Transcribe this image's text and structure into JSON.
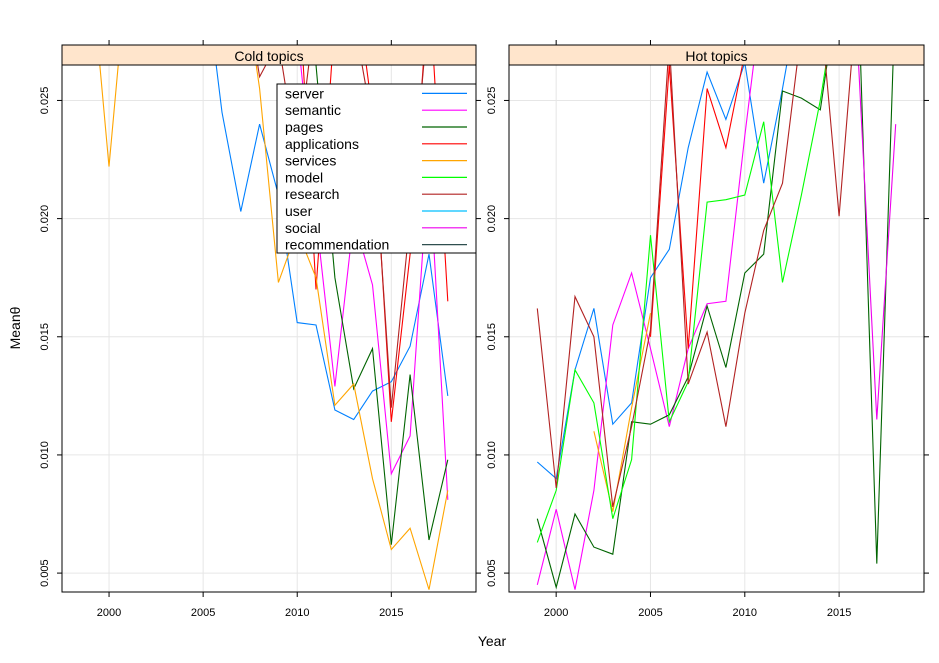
{
  "chart_data": {
    "type": "line",
    "xlabel": "Year",
    "ylabel": "Meanθ",
    "xlim": [
      1997.5,
      2019.5
    ],
    "ylim": [
      0.0042,
      0.0265
    ],
    "x_ticks": [
      2000,
      2005,
      2010,
      2015
    ],
    "y_ticks": [
      0.005,
      0.01,
      0.015,
      0.02,
      0.025
    ],
    "y_tick_labels": [
      "0.005",
      "0.010",
      "0.015",
      "0.020",
      "0.025"
    ],
    "grid": true,
    "legend_position": "top-right of first panel",
    "panels": [
      {
        "title": "Cold topics",
        "legend": true,
        "series": [
          {
            "name": "server",
            "color": "#0080ff",
            "x": [
              2005,
              2006,
              2007,
              2008,
              2009,
              2010,
              2011,
              2012,
              2013,
              2014,
              2015,
              2016,
              2017,
              2018
            ],
            "y": [
              0.031,
              0.0245,
              0.0203,
              0.024,
              0.021,
              0.0156,
              0.0155,
              0.0119,
              0.0115,
              0.0127,
              0.0131,
              0.0146,
              0.0185,
              0.0125
            ]
          },
          {
            "name": "semantic",
            "color": "#ff00ff",
            "x": [
              2009,
              2010,
              2011,
              2012,
              2013,
              2014,
              2015,
              2016,
              2017,
              2018
            ],
            "y": [
              0.031,
              0.028,
              0.0201,
              0.0129,
              0.02,
              0.0172,
              0.0092,
              0.0108,
              0.0225,
              0.0081
            ]
          },
          {
            "name": "pages",
            "color": "#006400",
            "x": [
              2010,
              2011,
              2012,
              2013,
              2014,
              2015,
              2016,
              2017,
              2018
            ],
            "y": [
              0.031,
              0.0265,
              0.0175,
              0.0128,
              0.0145,
              0.0062,
              0.0134,
              0.0064,
              0.0098
            ]
          },
          {
            "name": "applications",
            "color": "#ff0000",
            "x": [
              2010,
              2011,
              2012,
              2013,
              2014,
              2015,
              2016,
              2017,
              2018
            ],
            "y": [
              0.031,
              0.017,
              0.0285,
              0.0305,
              0.0245,
              0.0114,
              0.0185,
              0.03,
              0.0165
            ]
          },
          {
            "name": "services",
            "color": "#ffa500",
            "x": [
              1999,
              2000,
              2001,
              2007,
              2008,
              2009,
              2010,
              2011,
              2012,
              2013,
              2014,
              2015,
              2016,
              2017,
              2018
            ],
            "y": [
              0.031,
              0.0222,
              0.031,
              0.031,
              0.0255,
              0.0173,
              0.0195,
              0.0175,
              0.0121,
              0.013,
              0.009,
              0.006,
              0.0069,
              0.0043,
              0.0085
            ]
          },
          {
            "name": "model",
            "color": "#00ff00",
            "x": [],
            "y": []
          },
          {
            "name": "research",
            "color": "#b22222",
            "x": [
              2007,
              2008,
              2009,
              2010,
              2011,
              2012,
              2013,
              2014,
              2015,
              2016,
              2017,
              2018
            ],
            "y": [
              0.031,
              0.026,
              0.0275,
              0.0225,
              0.029,
              0.03,
              0.0285,
              0.024,
              0.012,
              0.02,
              0.029,
              0.027
            ]
          },
          {
            "name": "user",
            "color": "#00bfff",
            "x": [],
            "y": []
          },
          {
            "name": "social",
            "color": "#ee00ee",
            "x": [],
            "y": []
          },
          {
            "name": "recommendation",
            "color": "#2f4f4f",
            "x": [],
            "y": []
          }
        ]
      },
      {
        "title": "Hot topics",
        "legend": false,
        "series": [
          {
            "name": "server",
            "color": "#0080ff",
            "x": [
              1999,
              2000,
              2001,
              2002,
              2003,
              2004,
              2005,
              2006,
              2007,
              2008,
              2009,
              2010,
              2011,
              2012,
              2013
            ],
            "y": [
              0.0097,
              0.009,
              0.0136,
              0.0162,
              0.0113,
              0.0122,
              0.0175,
              0.0187,
              0.023,
              0.0262,
              0.0242,
              0.0266,
              0.0215,
              0.0255,
              0.03
            ]
          },
          {
            "name": "semantic",
            "color": "#ff00ff",
            "x": [
              1999,
              2000,
              2001,
              2002,
              2003,
              2004,
              2005,
              2006,
              2007,
              2008,
              2009,
              2010,
              2011
            ],
            "y": [
              0.0045,
              0.0077,
              0.0043,
              0.0085,
              0.0155,
              0.0177,
              0.0145,
              0.0112,
              0.0145,
              0.0164,
              0.0165,
              0.0235,
              0.03
            ]
          },
          {
            "name": "pages",
            "color": "#006400",
            "x": [
              1999,
              2000,
              2001,
              2002,
              2003,
              2004,
              2005,
              2006,
              2007,
              2008,
              2009,
              2010,
              2011,
              2012,
              2013,
              2014,
              2015,
              2016,
              2017,
              2018
            ],
            "y": [
              0.0073,
              0.0044,
              0.0075,
              0.0061,
              0.0058,
              0.0114,
              0.0113,
              0.0117,
              0.0133,
              0.0163,
              0.0137,
              0.0177,
              0.0185,
              0.0254,
              0.0251,
              0.0246,
              0.03,
              0.03,
              0.0054,
              0.03
            ]
          },
          {
            "name": "applications",
            "color": "#ff0000",
            "x": [
              2005,
              2006,
              2007,
              2008,
              2009,
              2010,
              2011
            ],
            "y": [
              0.015,
              0.0265,
              0.0145,
              0.0255,
              0.023,
              0.027,
              0.03
            ]
          },
          {
            "name": "services",
            "color": "#ffa500",
            "x": [
              2002,
              2003,
              2004,
              2005
            ],
            "y": [
              0.011,
              0.0076,
              0.012,
              0.016
            ]
          },
          {
            "name": "model",
            "color": "#00ff00",
            "x": [
              1999,
              2000,
              2001,
              2002,
              2003,
              2004,
              2005,
              2006,
              2007,
              2008,
              2009,
              2010,
              2011,
              2012,
              2013,
              2014,
              2015
            ],
            "y": [
              0.0063,
              0.0085,
              0.0136,
              0.0122,
              0.0073,
              0.0098,
              0.0193,
              0.0114,
              0.0131,
              0.0207,
              0.0208,
              0.021,
              0.0241,
              0.0173,
              0.021,
              0.025,
              0.03
            ]
          },
          {
            "name": "research",
            "color": "#b22222",
            "x": [
              1999,
              2000,
              2001,
              2002,
              2003,
              2004,
              2005,
              2006,
              2007,
              2008,
              2009,
              2010,
              2011,
              2012,
              2013,
              2014,
              2015,
              2016
            ],
            "y": [
              0.0162,
              0.0086,
              0.0167,
              0.015,
              0.0078,
              0.0112,
              0.0153,
              0.0275,
              0.013,
              0.0152,
              0.0112,
              0.016,
              0.0195,
              0.0215,
              0.028,
              0.029,
              0.0201,
              0.03
            ]
          },
          {
            "name": "user",
            "color": "#00bfff",
            "x": [],
            "y": []
          },
          {
            "name": "social",
            "color": "#ee00ee",
            "x": [
              2015,
              2016,
              2017,
              2018
            ],
            "y": [
              0.03,
              0.027,
              0.0115,
              0.024
            ]
          },
          {
            "name": "recommendation",
            "color": "#2f4f4f",
            "x": [],
            "y": []
          }
        ]
      }
    ]
  },
  "colors": {
    "strip_background": "#ffe5cc",
    "grid": "#e6e6e6",
    "frame": "#000000"
  }
}
